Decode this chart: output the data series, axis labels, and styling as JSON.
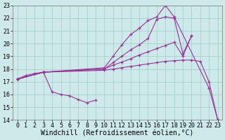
{
  "xlabel": "Windchill (Refroidissement éolien,°C)",
  "xlim": [
    -0.5,
    23.5
  ],
  "ylim": [
    14,
    23
  ],
  "yticks": [
    14,
    15,
    16,
    17,
    18,
    19,
    20,
    21,
    22,
    23
  ],
  "xticks": [
    0,
    1,
    2,
    3,
    4,
    5,
    6,
    7,
    8,
    9,
    10,
    11,
    12,
    13,
    14,
    15,
    16,
    17,
    18,
    19,
    20,
    21,
    22,
    23
  ],
  "background_color": "#cee9e9",
  "grid_color": "#a0c8c8",
  "line_color": "#993399",
  "series": [
    {
      "x": [
        0,
        1,
        2,
        3,
        4,
        5,
        6,
        7,
        8,
        9
      ],
      "y": [
        17.2,
        17.5,
        17.65,
        17.75,
        16.2,
        16.0,
        15.9,
        15.6,
        15.35,
        15.55
      ]
    },
    {
      "x": [
        0,
        3,
        10,
        11,
        12,
        13,
        14,
        15,
        16,
        17,
        18,
        22,
        23
      ],
      "y": [
        17.2,
        17.75,
        18.1,
        19.0,
        19.9,
        20.7,
        21.2,
        21.8,
        22.1,
        23.0,
        22.1,
        16.5,
        14.0
      ]
    },
    {
      "x": [
        0,
        3,
        10,
        11,
        12,
        13,
        14,
        15,
        16,
        17,
        18,
        19,
        20
      ],
      "y": [
        17.2,
        17.75,
        18.0,
        18.5,
        19.0,
        19.5,
        19.9,
        20.4,
        21.9,
        22.1,
        22.0,
        19.2,
        20.6
      ]
    },
    {
      "x": [
        0,
        3,
        10,
        11,
        12,
        13,
        14,
        15,
        16,
        17,
        18,
        19,
        20
      ],
      "y": [
        17.2,
        17.75,
        18.0,
        18.3,
        18.55,
        18.8,
        19.1,
        19.35,
        19.6,
        19.85,
        20.1,
        19.0,
        20.6
      ]
    },
    {
      "x": [
        0,
        3,
        10,
        11,
        12,
        13,
        14,
        15,
        16,
        17,
        18,
        19,
        20,
        21,
        22,
        23
      ],
      "y": [
        17.2,
        17.75,
        17.9,
        18.0,
        18.1,
        18.2,
        18.3,
        18.4,
        18.5,
        18.6,
        18.65,
        18.7,
        18.7,
        18.6,
        17.0,
        14.0
      ]
    }
  ],
  "font_family": "monospace",
  "tick_fontsize": 6.0,
  "xlabel_fontsize": 7.0
}
